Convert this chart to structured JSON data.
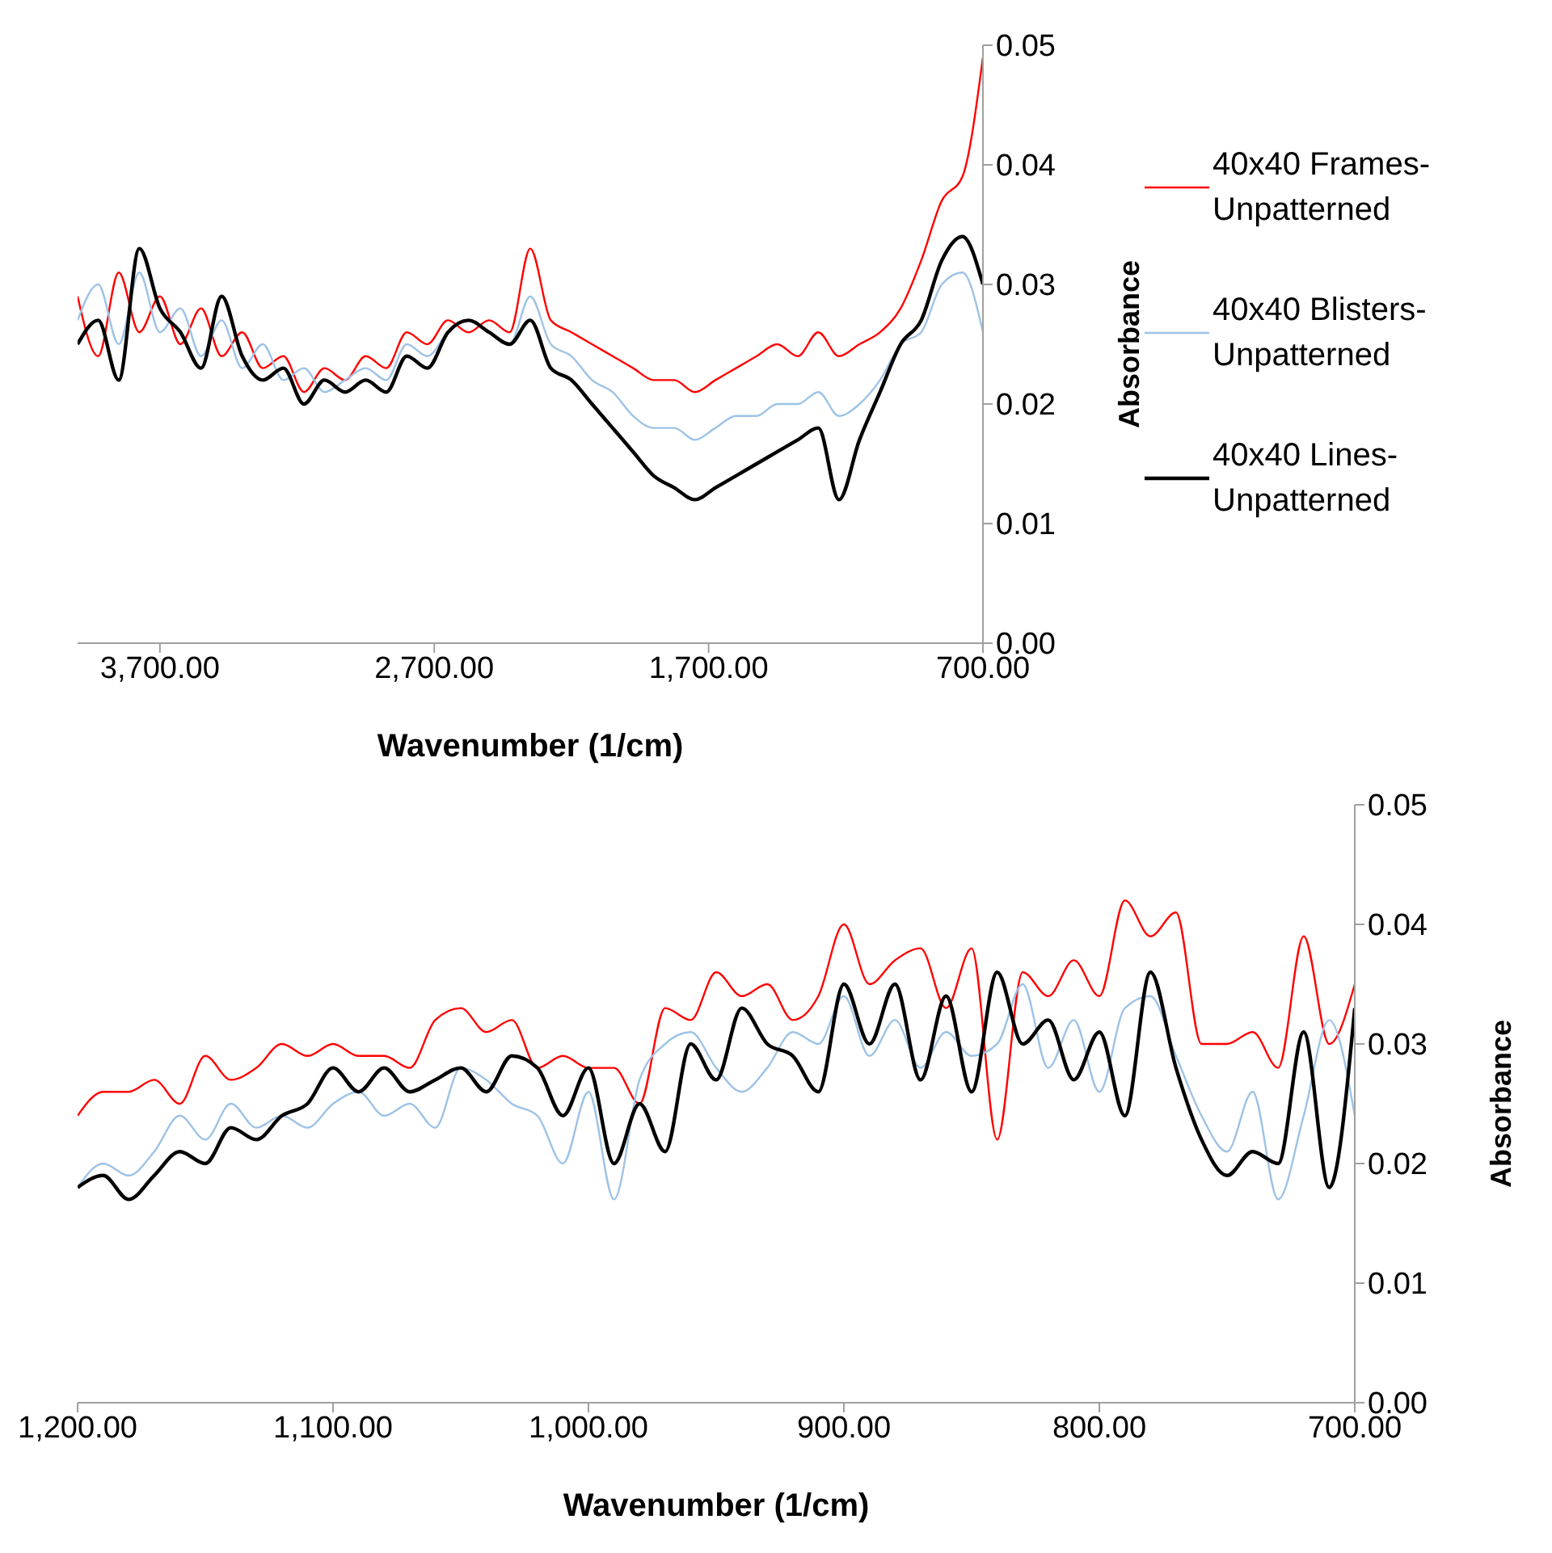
{
  "chart_data": [
    {
      "type": "line",
      "xlabel": "Wavenumber (1/cm)",
      "ylabel": "Absorbance",
      "legend": "right",
      "grid": false,
      "x": [
        4000,
        3925,
        3850,
        3775,
        3700,
        3625,
        3550,
        3475,
        3400,
        3325,
        3250,
        3175,
        3100,
        3025,
        2950,
        2875,
        2800,
        2725,
        2650,
        2575,
        2500,
        2425,
        2350,
        2275,
        2200,
        2125,
        2050,
        1975,
        1900,
        1825,
        1750,
        1675,
        1600,
        1525,
        1450,
        1375,
        1300,
        1225,
        1150,
        1075,
        1000,
        925,
        850,
        775,
        700
      ],
      "xlim": [
        4000,
        700
      ],
      "xticks": [
        {
          "value": 3700,
          "label": "3,700.00"
        },
        {
          "value": 2700,
          "label": "2,700.00"
        },
        {
          "value": 1700,
          "label": "1,700.00"
        },
        {
          "value": 700,
          "label": "700.00"
        }
      ],
      "ylim": [
        0,
        0.05
      ],
      "yticks": [
        {
          "value": 0,
          "label": "0.00"
        },
        {
          "value": 0.01,
          "label": "0.01"
        },
        {
          "value": 0.02,
          "label": "0.02"
        },
        {
          "value": 0.03,
          "label": "0.03"
        },
        {
          "value": 0.04,
          "label": "0.04"
        },
        {
          "value": 0.05,
          "label": "0.05"
        }
      ],
      "series": [
        {
          "name": "40x40 Frames-Unpatterned",
          "color": "#ff0000",
          "values": [
            0.029,
            0.024,
            0.031,
            0.026,
            0.029,
            0.025,
            0.028,
            0.024,
            0.026,
            0.023,
            0.024,
            0.021,
            0.023,
            0.022,
            0.024,
            0.023,
            0.026,
            0.025,
            0.027,
            0.026,
            0.027,
            0.026,
            0.033,
            0.027,
            0.026,
            0.025,
            0.024,
            0.023,
            0.022,
            0.022,
            0.021,
            0.022,
            0.023,
            0.024,
            0.025,
            0.024,
            0.026,
            0.024,
            0.025,
            0.026,
            0.028,
            0.032,
            0.037,
            0.039,
            0.049
          ]
        },
        {
          "name": "40x40 Blisters-Unpatterned",
          "color": "#9dc3e6",
          "values": [
            0.027,
            0.03,
            0.025,
            0.031,
            0.026,
            0.028,
            0.024,
            0.027,
            0.023,
            0.025,
            0.022,
            0.023,
            0.021,
            0.022,
            0.023,
            0.022,
            0.025,
            0.024,
            0.026,
            0.027,
            0.026,
            0.025,
            0.029,
            0.025,
            0.024,
            0.022,
            0.021,
            0.019,
            0.018,
            0.018,
            0.017,
            0.018,
            0.019,
            0.019,
            0.02,
            0.02,
            0.021,
            0.019,
            0.02,
            0.022,
            0.025,
            0.026,
            0.03,
            0.031,
            0.026
          ]
        },
        {
          "name": "40x40 Lines-Unpatterned",
          "color": "#000000",
          "values": [
            0.025,
            0.027,
            0.022,
            0.033,
            0.028,
            0.026,
            0.023,
            0.029,
            0.024,
            0.022,
            0.023,
            0.02,
            0.022,
            0.021,
            0.022,
            0.021,
            0.024,
            0.023,
            0.026,
            0.027,
            0.026,
            0.025,
            0.027,
            0.023,
            0.022,
            0.02,
            0.018,
            0.016,
            0.014,
            0.013,
            0.012,
            0.013,
            0.014,
            0.015,
            0.016,
            0.017,
            0.018,
            0.012,
            0.017,
            0.021,
            0.025,
            0.027,
            0.032,
            0.034,
            0.03
          ]
        }
      ]
    },
    {
      "type": "line",
      "xlabel": "Wavenumber (1/cm)",
      "ylabel": "Absorbance",
      "grid": false,
      "x": [
        1200,
        1190,
        1180,
        1170,
        1160,
        1150,
        1140,
        1130,
        1120,
        1110,
        1100,
        1090,
        1080,
        1070,
        1060,
        1050,
        1040,
        1030,
        1020,
        1010,
        1000,
        990,
        980,
        970,
        960,
        950,
        940,
        930,
        920,
        910,
        900,
        890,
        880,
        870,
        860,
        850,
        840,
        830,
        820,
        810,
        800,
        790,
        780,
        770,
        760,
        750,
        740,
        730,
        720,
        710,
        700
      ],
      "xlim": [
        1200,
        700
      ],
      "xticks": [
        {
          "value": 1200,
          "label": "1,200.00"
        },
        {
          "value": 1100,
          "label": "1,100.00"
        },
        {
          "value": 1000,
          "label": "1,000.00"
        },
        {
          "value": 900,
          "label": "900.00"
        },
        {
          "value": 800,
          "label": "800.00"
        },
        {
          "value": 700,
          "label": "700.00"
        }
      ],
      "ylim": [
        0,
        0.05
      ],
      "yticks": [
        {
          "value": 0,
          "label": "0.00"
        },
        {
          "value": 0.01,
          "label": "0.01"
        },
        {
          "value": 0.02,
          "label": "0.02"
        },
        {
          "value": 0.03,
          "label": "0.03"
        },
        {
          "value": 0.04,
          "label": "0.04"
        },
        {
          "value": 0.05,
          "label": "0.05"
        }
      ],
      "series": [
        {
          "color": "#ff0000",
          "values": [
            0.024,
            0.026,
            0.026,
            0.027,
            0.025,
            0.029,
            0.027,
            0.028,
            0.03,
            0.029,
            0.03,
            0.029,
            0.029,
            0.028,
            0.032,
            0.033,
            0.031,
            0.032,
            0.028,
            0.029,
            0.028,
            0.028,
            0.025,
            0.033,
            0.032,
            0.036,
            0.034,
            0.035,
            0.032,
            0.034,
            0.04,
            0.035,
            0.037,
            0.038,
            0.033,
            0.038,
            0.022,
            0.036,
            0.034,
            0.037,
            0.034,
            0.042,
            0.039,
            0.041,
            0.03,
            0.03,
            0.031,
            0.028,
            0.039,
            0.03,
            0.035
          ]
        },
        {
          "color": "#9dc3e6",
          "values": [
            0.018,
            0.02,
            0.019,
            0.021,
            0.024,
            0.022,
            0.025,
            0.023,
            0.024,
            0.023,
            0.025,
            0.026,
            0.024,
            0.025,
            0.023,
            0.028,
            0.027,
            0.025,
            0.024,
            0.02,
            0.026,
            0.017,
            0.027,
            0.03,
            0.031,
            0.028,
            0.026,
            0.028,
            0.031,
            0.03,
            0.034,
            0.029,
            0.032,
            0.028,
            0.031,
            0.029,
            0.03,
            0.035,
            0.028,
            0.032,
            0.026,
            0.033,
            0.034,
            0.029,
            0.024,
            0.021,
            0.026,
            0.017,
            0.024,
            0.032,
            0.024
          ]
        },
        {
          "color": "#000000",
          "values": [
            0.018,
            0.019,
            0.017,
            0.019,
            0.021,
            0.02,
            0.023,
            0.022,
            0.024,
            0.025,
            0.028,
            0.026,
            0.028,
            0.026,
            0.027,
            0.028,
            0.026,
            0.029,
            0.028,
            0.024,
            0.028,
            0.02,
            0.025,
            0.021,
            0.03,
            0.027,
            0.033,
            0.03,
            0.029,
            0.026,
            0.035,
            0.03,
            0.035,
            0.027,
            0.034,
            0.026,
            0.036,
            0.03,
            0.032,
            0.027,
            0.031,
            0.024,
            0.036,
            0.028,
            0.022,
            0.019,
            0.021,
            0.02,
            0.031,
            0.018,
            0.033
          ]
        }
      ]
    }
  ]
}
